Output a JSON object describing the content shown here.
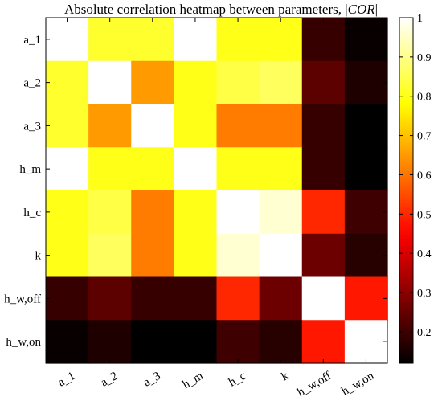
{
  "title_prefix": "Absolute correlation heatmap between parameters, |",
  "title_italic": "COR",
  "title_suffix": "|",
  "chart_data": {
    "type": "heatmap",
    "colormap": "hot",
    "title": "Absolute correlation heatmap between parameters, |COR|",
    "row_labels": [
      "a_1",
      "a_2",
      "a_3",
      "h_m",
      "h_c",
      "k",
      "h_w,off",
      "h_w,on"
    ],
    "col_labels": [
      "a_1",
      "a_2",
      "a_3",
      "h_m",
      "h_c",
      "k",
      "h_w,off",
      "h_w,on"
    ],
    "values": [
      [
        1.0,
        0.82,
        0.82,
        1.0,
        0.8,
        0.8,
        0.19,
        0.13
      ],
      [
        0.82,
        1.0,
        0.65,
        0.8,
        0.84,
        0.86,
        0.24,
        0.16
      ],
      [
        0.82,
        0.65,
        1.0,
        0.8,
        0.61,
        0.61,
        0.19,
        0.12
      ],
      [
        1.0,
        0.8,
        0.8,
        1.0,
        0.8,
        0.8,
        0.19,
        0.12
      ],
      [
        0.8,
        0.84,
        0.61,
        0.8,
        1.0,
        0.96,
        0.5,
        0.2
      ],
      [
        0.8,
        0.86,
        0.61,
        0.8,
        0.96,
        1.0,
        0.26,
        0.17
      ],
      [
        0.19,
        0.24,
        0.19,
        0.19,
        0.5,
        0.26,
        1.0,
        0.48
      ],
      [
        0.13,
        0.16,
        0.12,
        0.12,
        0.2,
        0.17,
        0.48,
        1.0
      ]
    ],
    "colorbar": {
      "min": 0.12,
      "max": 1.0,
      "ticks": [
        0.2,
        0.3,
        0.4,
        0.5,
        0.6,
        0.7,
        0.8,
        0.9,
        1
      ],
      "tick_labels": [
        "0.2",
        "0.3",
        "0.4",
        "0.5",
        "0.6",
        "0.7",
        "0.8",
        "0.9",
        "1"
      ]
    }
  }
}
